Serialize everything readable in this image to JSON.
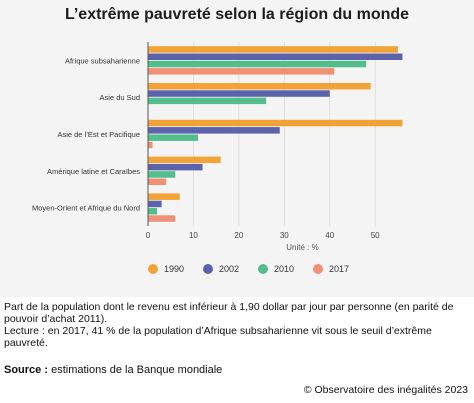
{
  "chart_data": {
    "type": "bar",
    "orientation": "horizontal",
    "title": "L’extrême pauvreté selon la région du monde",
    "xlabel": "Unité : %",
    "xlim": [
      0,
      57
    ],
    "xticks": [
      "0",
      "10",
      "20",
      "30",
      "40",
      "50"
    ],
    "grid": true,
    "legend_position": "bottom",
    "categories": [
      "Afrique subsaharienne",
      "Asie du Sud",
      "Asie de l’Est et Pacifique",
      "Amérique latine et Caraïbes",
      "Moyen-Orient et Afrique du Nord"
    ],
    "series": [
      {
        "name": "1990",
        "color": "#f2a337",
        "values": [
          55,
          49,
          56,
          16,
          7
        ]
      },
      {
        "name": "2002",
        "color": "#5b63ad",
        "values": [
          56,
          40,
          29,
          12,
          3
        ]
      },
      {
        "name": "2010",
        "color": "#53be8b",
        "values": [
          48,
          26,
          11,
          6,
          2
        ]
      },
      {
        "name": "2017",
        "color": "#f09075",
        "values": [
          41,
          0,
          1,
          4,
          6
        ]
      }
    ]
  },
  "note": {
    "line1": "Part de la population dont le revenu est inférieur à 1,90 dollar par jour par personne (en parité de pouvoir d’achat 2011).",
    "line2": "Lecture : en 2017, 41 % de la population d’Afrique subsaharienne vit sous le seuil d’extrême pauvreté."
  },
  "source": {
    "label": "Source :",
    "text": "estimations de la Banque mondiale"
  },
  "copyright": "© Observatoire des inégalités 2023"
}
